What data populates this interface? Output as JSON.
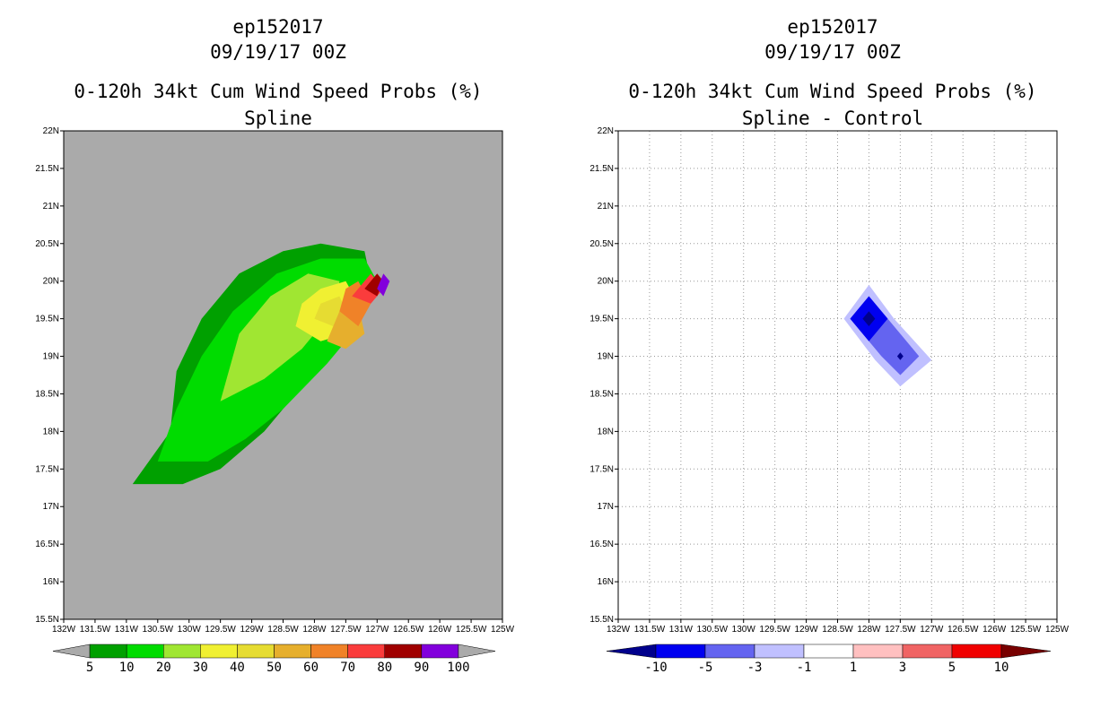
{
  "colors": {
    "gray_bg": "#aaaaaa",
    "green_dark": "#00a000",
    "green": "#00dc00",
    "green_light": "#a0e632",
    "yellow": "#f0f032",
    "yellow_dark": "#e6dc32",
    "orange_light": "#e6af2d",
    "orange": "#f08228",
    "red_light": "#fa3c3c",
    "maroon": "#a00000",
    "purple": "#8200dc",
    "navy": "#00008c",
    "blue": "#0000f0",
    "blue_med": "#6464f0",
    "blue_light": "#c0c0ff",
    "pink_light": "#ffc0c0",
    "red_med": "#f06464",
    "red": "#f00000",
    "dark_red": "#780000"
  },
  "chart_data": [
    {
      "type": "heatmap",
      "storm": "ep152017",
      "date": "09/19/17 00Z",
      "title": "0-120h 34kt Cum Wind Speed Probs (%)",
      "subtitle": "Spline",
      "x_ticks": [
        "132W",
        "131.5W",
        "131W",
        "130.5W",
        "130W",
        "129.5W",
        "129W",
        "128.5W",
        "128W",
        "127.5W",
        "127W",
        "126.5W",
        "126W",
        "125.5W",
        "125W"
      ],
      "y_ticks": [
        "22N",
        "21.5N",
        "21N",
        "20.5N",
        "20N",
        "19.5N",
        "19N",
        "18.5N",
        "18N",
        "17.5N",
        "17N",
        "16.5N",
        "16N",
        "15.5N"
      ],
      "xlim": [
        -132,
        -125
      ],
      "ylim": [
        15.5,
        22
      ],
      "grid": false,
      "colorbar": {
        "labels": [
          "5",
          "10",
          "20",
          "30",
          "40",
          "50",
          "60",
          "70",
          "80",
          "90",
          "100"
        ],
        "colors": [
          "#00a000",
          "#00dc00",
          "#a0e632",
          "#f0f032",
          "#e6dc32",
          "#e6af2d",
          "#f08228",
          "#fa3c3c",
          "#a00000",
          "#8200dc"
        ]
      },
      "contours": [
        {
          "level": 5,
          "color": "#00a000",
          "points": [
            [
              -130.9,
              17.3
            ],
            [
              -130.1,
              17.3
            ],
            [
              -129.5,
              17.5
            ],
            [
              -128.8,
              18.0
            ],
            [
              -128.2,
              18.6
            ],
            [
              -127.6,
              19.2
            ],
            [
              -127.1,
              20.0
            ],
            [
              -127.2,
              20.4
            ],
            [
              -127.9,
              20.5
            ],
            [
              -128.5,
              20.4
            ],
            [
              -129.2,
              20.1
            ],
            [
              -129.8,
              19.5
            ],
            [
              -130.2,
              18.8
            ],
            [
              -130.3,
              18.0
            ]
          ]
        },
        {
          "level": 10,
          "color": "#00dc00",
          "points": [
            [
              -130.5,
              17.6
            ],
            [
              -129.7,
              17.6
            ],
            [
              -129.1,
              17.9
            ],
            [
              -128.5,
              18.3
            ],
            [
              -127.8,
              18.9
            ],
            [
              -127.3,
              19.4
            ],
            [
              -127.0,
              20.0
            ],
            [
              -127.2,
              20.3
            ],
            [
              -127.9,
              20.3
            ],
            [
              -128.6,
              20.1
            ],
            [
              -129.3,
              19.6
            ],
            [
              -129.8,
              19.0
            ],
            [
              -130.2,
              18.3
            ]
          ]
        },
        {
          "level": 20,
          "color": "#a0e632",
          "points": [
            [
              -129.5,
              18.4
            ],
            [
              -128.8,
              18.7
            ],
            [
              -128.2,
              19.1
            ],
            [
              -127.7,
              19.6
            ],
            [
              -127.6,
              20.0
            ],
            [
              -128.1,
              20.1
            ],
            [
              -128.7,
              19.8
            ],
            [
              -129.2,
              19.3
            ]
          ]
        },
        {
          "level": 30,
          "color": "#f0f032",
          "points": [
            [
              -128.3,
              19.4
            ],
            [
              -127.9,
              19.2
            ],
            [
              -127.5,
              19.3
            ],
            [
              -127.3,
              19.7
            ],
            [
              -127.5,
              20.0
            ],
            [
              -127.9,
              19.9
            ],
            [
              -128.2,
              19.7
            ]
          ]
        },
        {
          "level": 40,
          "color": "#e6dc32",
          "points": [
            [
              -128.0,
              19.5
            ],
            [
              -127.7,
              19.4
            ],
            [
              -127.5,
              19.6
            ],
            [
              -127.6,
              19.8
            ],
            [
              -127.9,
              19.7
            ]
          ]
        },
        {
          "level": 50,
          "color": "#e6af2d",
          "points": [
            [
              -127.8,
              19.2
            ],
            [
              -127.5,
              19.1
            ],
            [
              -127.2,
              19.3
            ],
            [
              -127.3,
              19.7
            ],
            [
              -127.6,
              19.6
            ]
          ]
        },
        {
          "level": 60,
          "color": "#f08228",
          "points": [
            [
              -127.6,
              19.6
            ],
            [
              -127.3,
              19.4
            ],
            [
              -127.1,
              19.7
            ],
            [
              -127.3,
              20.0
            ],
            [
              -127.5,
              19.9
            ]
          ]
        },
        {
          "level": 70,
          "color": "#fa3c3c",
          "points": [
            [
              -127.4,
              19.8
            ],
            [
              -127.1,
              19.7
            ],
            [
              -126.9,
              19.9
            ],
            [
              -127.1,
              20.1
            ]
          ]
        },
        {
          "level": 80,
          "color": "#a00000",
          "points": [
            [
              -127.2,
              19.9
            ],
            [
              -127.0,
              19.8
            ],
            [
              -126.9,
              20.0
            ],
            [
              -127.0,
              20.1
            ]
          ]
        },
        {
          "level": 90,
          "color": "#8200dc",
          "points": [
            [
              -127.0,
              19.9
            ],
            [
              -126.9,
              19.8
            ],
            [
              -126.8,
              20.0
            ],
            [
              -126.9,
              20.1
            ]
          ]
        }
      ]
    },
    {
      "type": "heatmap",
      "storm": "ep152017",
      "date": "09/19/17 00Z",
      "title": "0-120h 34kt Cum Wind Speed Probs (%)",
      "subtitle": "Spline - Control",
      "x_ticks": [
        "132W",
        "131.5W",
        "131W",
        "130.5W",
        "130W",
        "129.5W",
        "129W",
        "128.5W",
        "128W",
        "127.5W",
        "127W",
        "126.5W",
        "126W",
        "125.5W",
        "125W"
      ],
      "y_ticks": [
        "22N",
        "21.5N",
        "21N",
        "20.5N",
        "20N",
        "19.5N",
        "19N",
        "18.5N",
        "18N",
        "17.5N",
        "17N",
        "16.5N",
        "16N",
        "15.5N"
      ],
      "xlim": [
        -132,
        -125
      ],
      "ylim": [
        15.5,
        22
      ],
      "grid": true,
      "colorbar": {
        "labels": [
          "-10",
          "-5",
          "-3",
          "-1",
          "1",
          "3",
          "5",
          "10"
        ],
        "colors": [
          "#00008c",
          "#0000f0",
          "#6464f0",
          "#c0c0ff",
          "#ffffff",
          "#ffc0c0",
          "#f06464",
          "#f00000",
          "#780000"
        ]
      },
      "contours": [
        {
          "level": -1,
          "color": "#c0c0ff",
          "points": [
            [
              -128.0,
              19.95
            ],
            [
              -127.6,
              19.5
            ],
            [
              -127.0,
              18.95
            ],
            [
              -127.5,
              18.6
            ],
            [
              -127.9,
              18.95
            ],
            [
              -128.4,
              19.5
            ]
          ]
        },
        {
          "level": -3,
          "color": "#6464f0",
          "points": [
            [
              -128.0,
              19.8
            ],
            [
              -127.7,
              19.5
            ],
            [
              -127.2,
              19.0
            ],
            [
              -127.5,
              18.75
            ],
            [
              -127.8,
              19.0
            ],
            [
              -128.3,
              19.5
            ]
          ]
        },
        {
          "level": -5,
          "color": "#0000f0",
          "points": [
            [
              -128.0,
              19.8
            ],
            [
              -127.7,
              19.5
            ],
            [
              -128.0,
              19.2
            ],
            [
              -128.3,
              19.5
            ]
          ]
        },
        {
          "level": -10,
          "color": "#00008c",
          "points": [
            [
              -128.0,
              19.6
            ],
            [
              -127.9,
              19.5
            ],
            [
              -128.0,
              19.4
            ],
            [
              -128.1,
              19.5
            ]
          ]
        },
        {
          "level": -10,
          "color": "#00008c",
          "points": [
            [
              -127.5,
              19.05
            ],
            [
              -127.45,
              19.0
            ],
            [
              -127.5,
              18.95
            ],
            [
              -127.55,
              19.0
            ]
          ]
        }
      ]
    }
  ]
}
